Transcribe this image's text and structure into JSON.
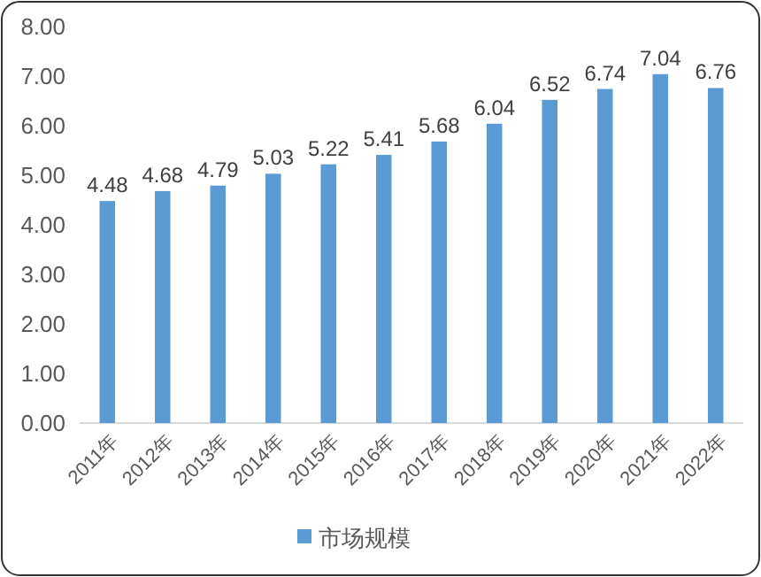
{
  "chart_data": {
    "type": "bar",
    "categories": [
      "2011年",
      "2012年",
      "2013年",
      "2014年",
      "2015年",
      "2016年",
      "2017年",
      "2018年",
      "2019年",
      "2020年",
      "2021年",
      "2022年"
    ],
    "series": [
      {
        "name": "市场规模",
        "color": "#5b9bd5",
        "values": [
          4.48,
          4.68,
          4.79,
          5.03,
          5.22,
          5.41,
          5.68,
          6.04,
          6.52,
          6.74,
          7.04,
          6.76
        ]
      }
    ],
    "ylim": [
      0,
      8
    ],
    "yticks": [
      {
        "value": 0,
        "label": "0.00"
      },
      {
        "value": 1,
        "label": "1.00"
      },
      {
        "value": 2,
        "label": "2.00"
      },
      {
        "value": 3,
        "label": "3.00"
      },
      {
        "value": 4,
        "label": "4.00"
      },
      {
        "value": 5,
        "label": "5.00"
      },
      {
        "value": 6,
        "label": "6.00"
      },
      {
        "value": 7,
        "label": "7.00"
      },
      {
        "value": 8,
        "label": "8.00"
      }
    ],
    "data_labels": true,
    "legend": "bottom",
    "grid": false
  }
}
